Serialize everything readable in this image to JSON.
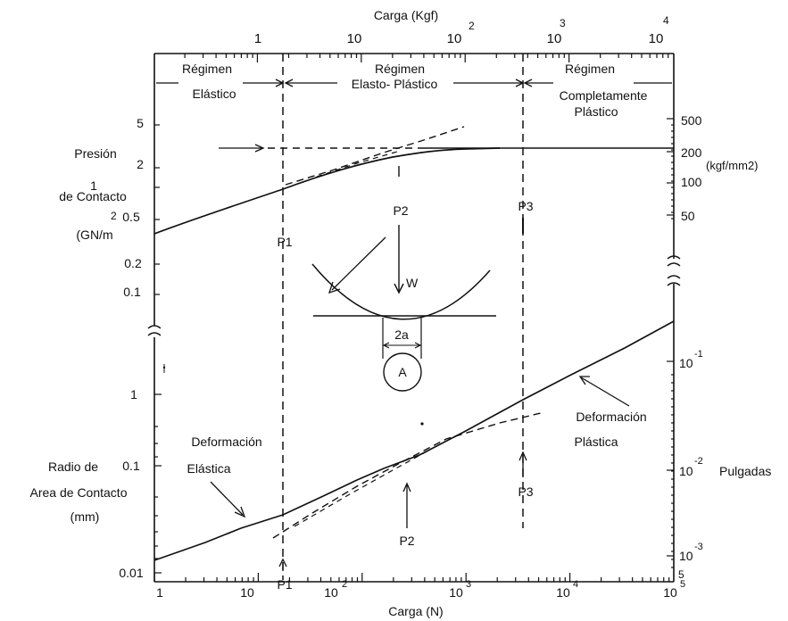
{
  "top_axis": {
    "title": "Carga (Kgf)",
    "ticks": [
      "1",
      "10",
      "10",
      "10",
      "10"
    ],
    "exponents": [
      "2",
      "3",
      "4"
    ]
  },
  "bottom_axis": {
    "title": "Carga (N)",
    "ticks": [
      "1",
      "10",
      "10",
      "10",
      "10",
      "10"
    ],
    "exponents": [
      "2",
      "3",
      "4",
      "5"
    ]
  },
  "regimes": {
    "elastic": [
      "Régimen",
      "Elástico"
    ],
    "elastoplastic": [
      "Régimen",
      "Elasto- Plástico"
    ],
    "plastic": [
      "Régimen",
      "Completamente",
      "Plástico"
    ]
  },
  "pressure_axis": {
    "label": [
      "Presión",
      "de Contacto",
      "(GN/m"
    ],
    "label_exponent": "2",
    "ticks": [
      "5",
      "2",
      "1",
      "0.5",
      "0.2",
      "0.1"
    ]
  },
  "pressure_right_axis": {
    "ticks": [
      "500",
      "200",
      "100",
      "50"
    ],
    "unit": "(kgf/mm2)"
  },
  "radius_axis": {
    "label": [
      "Radio de",
      "Area de Contacto",
      "(mm)"
    ],
    "ticks": [
      "1",
      "0.1",
      "0.01"
    ]
  },
  "radius_right_axis": {
    "ticks": [
      "10",
      "10",
      "10"
    ],
    "exponents": [
      "-1",
      "-2",
      "-3"
    ],
    "unit": "Pulgadas",
    "bottom_mark": "5"
  },
  "markers": {
    "p1": "P1",
    "p2": "P2",
    "p3": "P3"
  },
  "inset": {
    "load": "W",
    "width": "2a",
    "area": "A"
  },
  "annotations": {
    "elastic_deformation": [
      "Deformación",
      "Elástica"
    ],
    "plastic_deformation": [
      "Deformación",
      "Plástica"
    ]
  }
}
